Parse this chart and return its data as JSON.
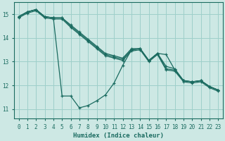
{
  "xlabel": "Humidex (Indice chaleur)",
  "bg_color": "#cde8e4",
  "grid_color": "#9ecfca",
  "line_color": "#1a6b60",
  "xlim": [
    -0.5,
    23.5
  ],
  "ylim": [
    10.6,
    15.5
  ],
  "yticks": [
    11,
    12,
    13,
    14,
    15
  ],
  "xticks": [
    0,
    1,
    2,
    3,
    4,
    5,
    6,
    7,
    8,
    9,
    10,
    11,
    12,
    13,
    14,
    15,
    16,
    17,
    18,
    19,
    20,
    21,
    22,
    23
  ],
  "series": [
    {
      "x": [
        0,
        1,
        2,
        3,
        4,
        5,
        6,
        7,
        8,
        9,
        10,
        11,
        12,
        13,
        14,
        15,
        16,
        17,
        18,
        19,
        20,
        21,
        22,
        23
      ],
      "y": [
        14.9,
        15.1,
        15.2,
        14.9,
        14.85,
        11.55,
        11.55,
        11.05,
        11.15,
        11.35,
        11.6,
        12.1,
        12.85,
        13.5,
        13.55,
        13.05,
        13.35,
        13.3,
        12.65,
        12.2,
        12.15,
        12.2,
        11.95,
        11.8
      ]
    },
    {
      "x": [
        0,
        1,
        2,
        3,
        4,
        5,
        6,
        7,
        8,
        9,
        10,
        11,
        12,
        13,
        14,
        15,
        16,
        17,
        18,
        19,
        20,
        21,
        22,
        23
      ],
      "y": [
        14.9,
        15.1,
        15.2,
        14.9,
        14.85,
        14.85,
        14.55,
        14.25,
        13.95,
        13.65,
        13.35,
        13.25,
        13.15,
        13.55,
        13.55,
        13.05,
        13.35,
        12.8,
        12.7,
        12.2,
        12.15,
        12.2,
        11.95,
        11.8
      ]
    },
    {
      "x": [
        0,
        1,
        2,
        3,
        4,
        5,
        6,
        7,
        8,
        9,
        10,
        11,
        12,
        13,
        14,
        15,
        16,
        17,
        18,
        19,
        20,
        21,
        22,
        23
      ],
      "y": [
        14.9,
        15.1,
        15.2,
        14.9,
        14.85,
        14.85,
        14.5,
        14.2,
        13.9,
        13.6,
        13.3,
        13.2,
        13.1,
        13.5,
        13.55,
        13.05,
        13.35,
        12.7,
        12.65,
        12.2,
        12.15,
        12.2,
        11.95,
        11.8
      ]
    },
    {
      "x": [
        0,
        1,
        2,
        3,
        4,
        5,
        6,
        7,
        8,
        9,
        10,
        11,
        12,
        13,
        14,
        15,
        16,
        17,
        18,
        19,
        20,
        21,
        22,
        23
      ],
      "y": [
        14.85,
        15.05,
        15.15,
        14.85,
        14.8,
        14.8,
        14.45,
        14.15,
        13.85,
        13.55,
        13.25,
        13.15,
        13.05,
        13.45,
        13.5,
        13.0,
        13.3,
        12.65,
        12.6,
        12.15,
        12.1,
        12.15,
        11.9,
        11.75
      ]
    }
  ]
}
